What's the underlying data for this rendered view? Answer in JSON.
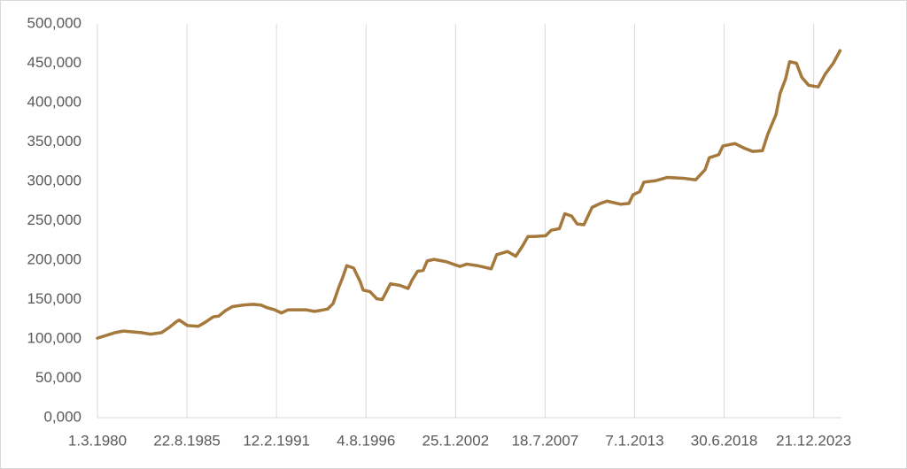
{
  "chart_data": {
    "type": "line",
    "x": [
      "1.3.1980",
      "1.4.1981",
      "1.10.1981",
      "1.11.1982",
      "1.6.1983",
      "1.2.1984",
      "1.8.1984",
      "1.1.1985",
      "1.3.1985",
      "1.9.1985",
      "1.5.1986",
      "1.10.1986",
      "1.4.1987",
      "1.8.1987",
      "1.1.1988",
      "1.6.1988",
      "1.2.1989",
      "1.9.1989",
      "1.3.1990",
      "1.7.1990",
      "1.1.1991",
      "1.6.1991",
      "1.11.1991",
      "1.12.1992",
      "1.6.1993",
      "1.10.1993",
      "1.4.1994",
      "1.8.1994",
      "1.12.1994",
      "1.3.1995",
      "1.6.1995",
      "1.11.1995",
      "1.4.1996",
      "1.6.1996",
      "1.11.1996",
      "1.4.1997",
      "1.8.1997",
      "1.2.1998",
      "1.9.1998",
      "1.3.1999",
      "1.6.1999",
      "1.10.1999",
      "1.2.2000",
      "1.5.2000",
      "1.10.2000",
      "1.7.2001",
      "1.5.2002",
      "1.10.2002",
      "1.6.2003",
      "1.4.2004",
      "1.8.2004",
      "1.4.2005",
      "1.10.2005",
      "1.3.2006",
      "1.7.2006",
      "1.12.2006",
      "1.8.2007",
      "1.12.2007",
      "1.6.2008",
      "1.10.2008",
      "1.3.2009",
      "1.7.2009",
      "1.12.2009",
      "1.6.2010",
      "1.12.2010",
      "1.5.2011",
      "1.3.2012",
      "1.9.2012",
      "1.12.2012",
      "1.5.2013",
      "1.8.2013",
      "1.5.2014",
      "1.1.2015",
      "1.1.2016",
      "1.10.2016",
      "1.5.2017",
      "1.8.2017",
      "1.3.2018",
      "1.6.2018",
      "1.3.2019",
      "1.10.2019",
      "1.4.2020",
      "1.11.2020",
      "1.3.2021",
      "1.9.2021",
      "1.12.2021",
      "1.4.2022",
      "1.7.2022",
      "1.12.2022",
      "1.4.2023",
      "1.9.2023",
      "1.4.2024",
      "1.9.2024",
      "1.3.2025",
      "1.8.2025"
    ],
    "values": [
      101,
      108,
      110,
      108,
      106,
      108,
      115,
      122,
      124,
      117,
      116,
      121,
      128,
      129,
      136,
      141,
      143,
      144,
      143,
      140,
      137,
      133,
      137,
      137,
      135,
      136,
      138,
      145,
      165,
      178,
      193,
      190,
      172,
      162,
      160,
      151,
      150,
      170,
      168,
      164,
      175,
      186,
      187,
      199,
      201,
      198,
      192,
      195,
      193,
      189,
      207,
      211,
      205,
      218,
      230,
      230,
      231,
      238,
      240,
      259,
      256,
      246,
      245,
      267,
      272,
      275,
      271,
      272,
      283,
      287,
      299,
      301,
      305,
      304,
      302,
      315,
      330,
      334,
      345,
      348,
      342,
      338,
      339,
      360,
      385,
      412,
      430,
      452,
      450,
      432,
      422,
      420,
      436,
      450,
      466
    ],
    "color": "#a5783c",
    "xlim": [
      "1.3.1980",
      "1.9.2025"
    ],
    "xticks": [
      "1.3.1980",
      "22.8.1985",
      "12.2.1991",
      "4.8.1996",
      "25.1.2002",
      "18.7.2007",
      "7.1.2013",
      "30.6.2018",
      "21.12.2023"
    ],
    "ylim": [
      0,
      500
    ],
    "yticks": [
      {
        "value": 0,
        "label": "0,000"
      },
      {
        "value": 50,
        "label": "50,000"
      },
      {
        "value": 100,
        "label": "100,000"
      },
      {
        "value": 150,
        "label": "150,000"
      },
      {
        "value": 200,
        "label": "200,000"
      },
      {
        "value": 250,
        "label": "250,000"
      },
      {
        "value": 300,
        "label": "300,000"
      },
      {
        "value": 350,
        "label": "350,000"
      },
      {
        "value": 400,
        "label": "400,000"
      },
      {
        "value": 450,
        "label": "450,000"
      },
      {
        "value": 500,
        "label": "500,000"
      }
    ],
    "grid": true
  }
}
